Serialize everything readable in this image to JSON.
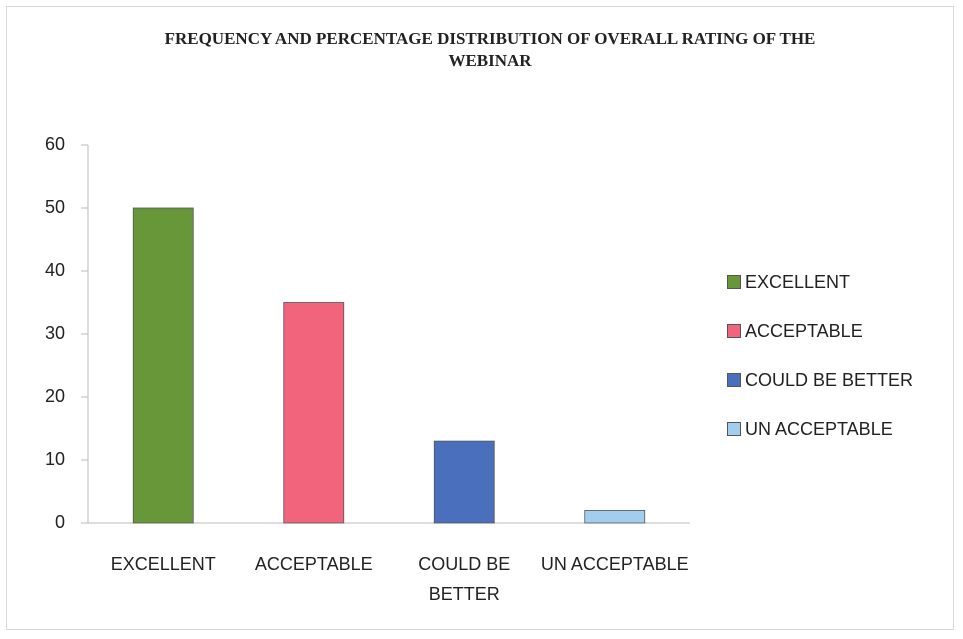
{
  "chart_data": {
    "type": "bar",
    "title": "FREQUENCY AND PERCENTAGE DISTRIBUTION OF OVERALL RATING OF THE WEBINAR",
    "categories": [
      "EXCELLENT",
      "ACCEPTABLE",
      "COULD BE BETTER",
      "UN ACCEPTABLE"
    ],
    "values": [
      50,
      35,
      13,
      2
    ],
    "colors": [
      "#68973a",
      "#f2637c",
      "#4a70bd",
      "#a3cdef"
    ],
    "ylim": [
      0,
      60
    ],
    "yticks": [
      0,
      10,
      20,
      30,
      40,
      50,
      60
    ],
    "grid": false,
    "legend": "right"
  }
}
